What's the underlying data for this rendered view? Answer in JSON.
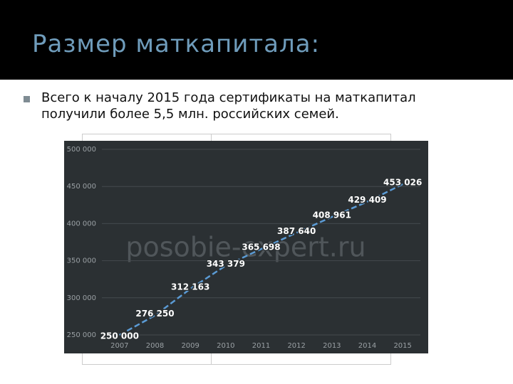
{
  "slide": {
    "title": "Размер маткапитала:",
    "bullet": "Всего к началу 2015 года сертификаты на маткапитал получили более 5,5 млн. российских семей."
  },
  "chart_data": {
    "type": "line",
    "watermark": "posobie-expert.ru",
    "categories": [
      "2007",
      "2008",
      "2009",
      "2010",
      "2011",
      "2012",
      "2013",
      "2014",
      "2015"
    ],
    "series": [
      {
        "color": "#5b9bd5",
        "values": [
          250000,
          276250,
          312163,
          343379,
          365698,
          387640,
          408961,
          429409,
          453026
        ],
        "value_labels": [
          "250 000",
          "276 250",
          "312 163",
          "343 379",
          "365 698",
          "387 640",
          "408 961",
          "429 409",
          "453 026"
        ]
      }
    ],
    "ylim": [
      250000,
      500000
    ],
    "yticks": [
      {
        "value": 250000,
        "label": "250 000"
      },
      {
        "value": 300000,
        "label": "300 000"
      },
      {
        "value": 350000,
        "label": "350 000"
      },
      {
        "value": 400000,
        "label": "400 000"
      },
      {
        "value": 450000,
        "label": "450 000"
      },
      {
        "value": 500000,
        "label": "500 000"
      }
    ],
    "grid": true
  }
}
